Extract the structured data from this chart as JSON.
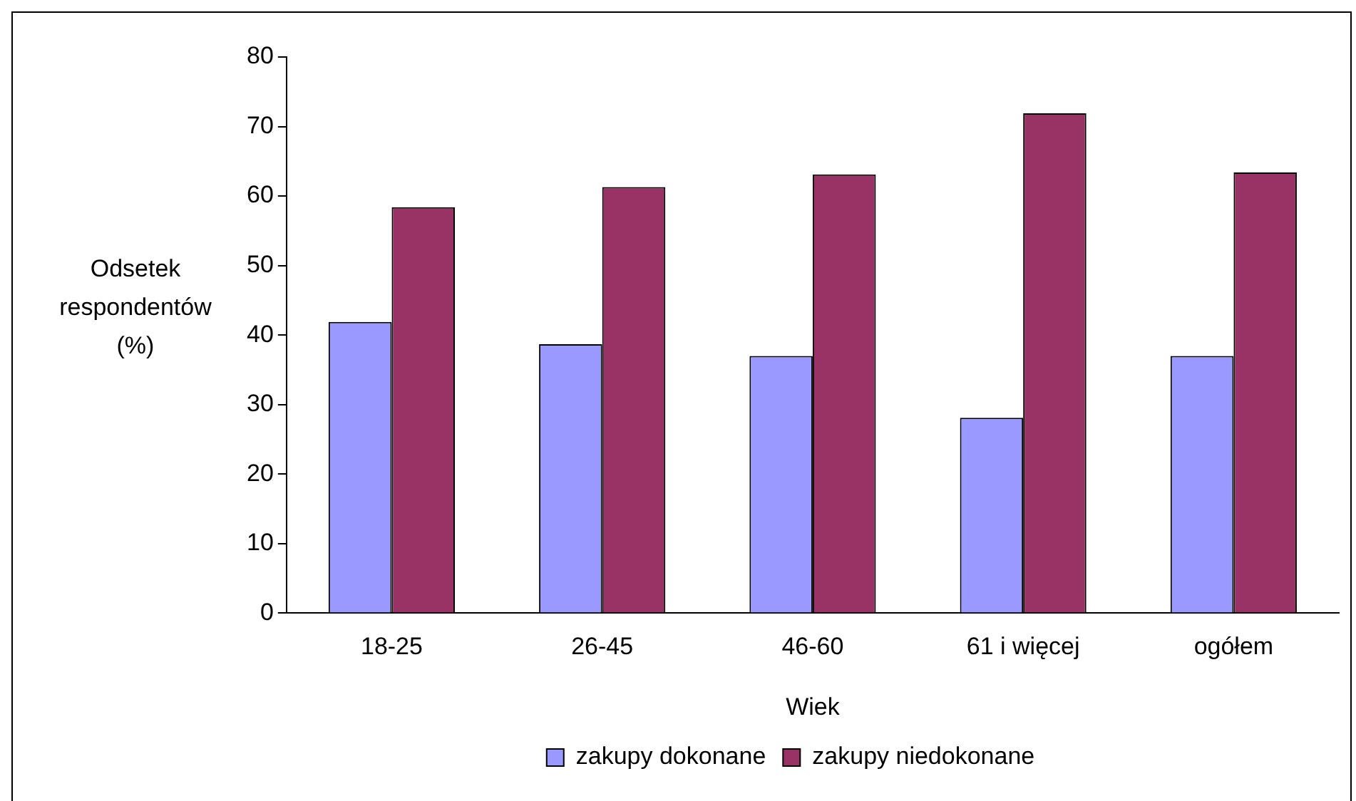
{
  "chart_data": {
    "type": "bar",
    "xlabel": "Wiek",
    "ylabel": "Odsetek respondentów (%)",
    "categories": [
      "18-25",
      "26-45",
      "46-60",
      "61 i więcej",
      "ogółem"
    ],
    "series": [
      {
        "name": "zakupy dokonane",
        "color": "#9999ff",
        "values": [
          41.9,
          38.7,
          37.0,
          28.1,
          37.0
        ]
      },
      {
        "name": "zakupy niedokonane",
        "color": "#993366",
        "values": [
          58.4,
          61.3,
          63.1,
          71.9,
          63.4
        ]
      }
    ],
    "ylim": [
      0,
      80
    ],
    "yticks": [
      0,
      10,
      20,
      30,
      40,
      50,
      60,
      70,
      80
    ],
    "grid": false,
    "legend": "bottom"
  }
}
